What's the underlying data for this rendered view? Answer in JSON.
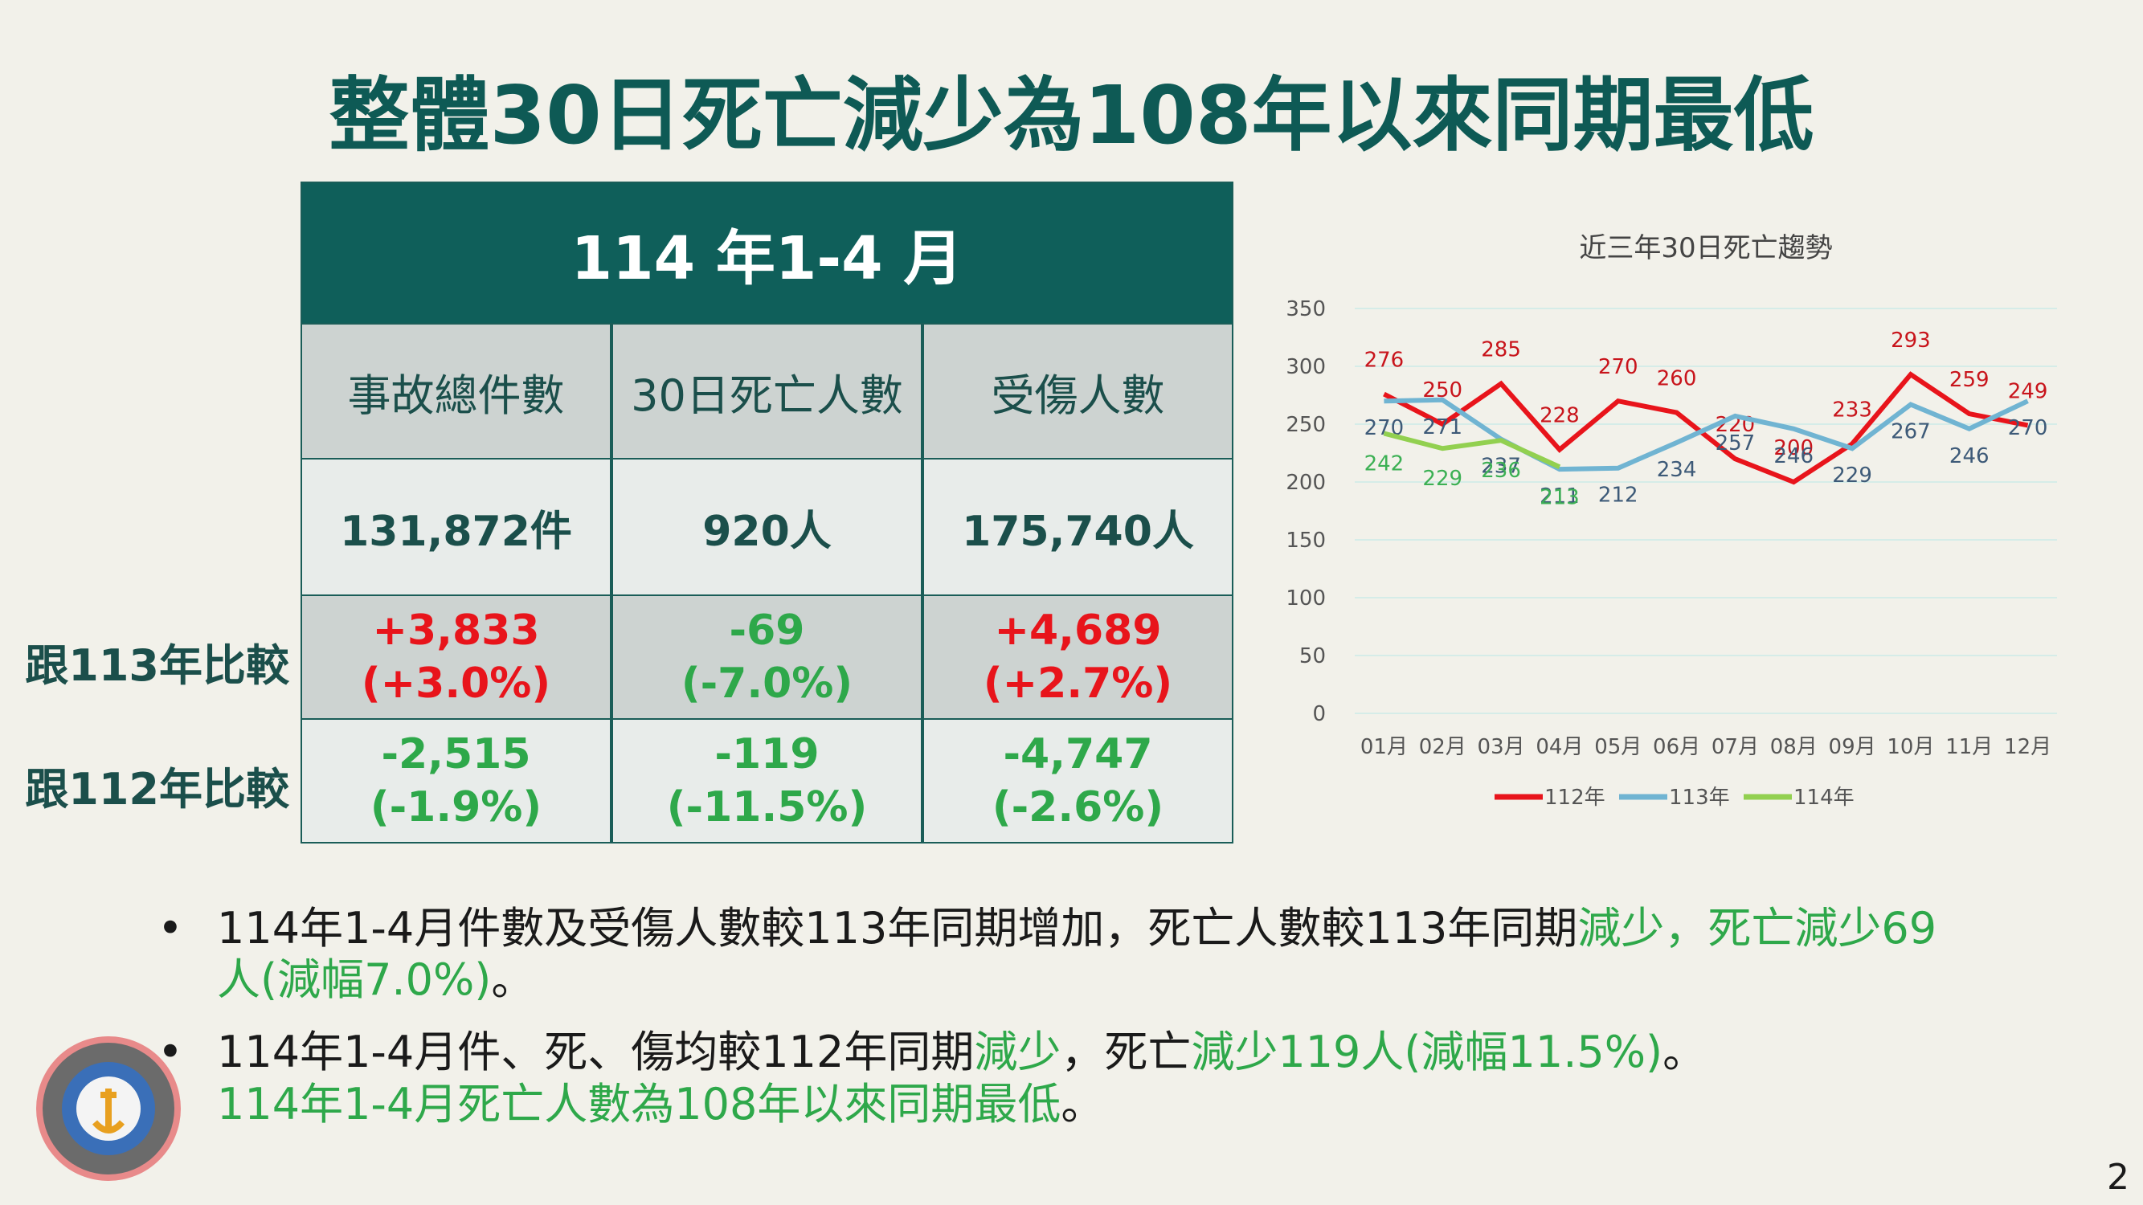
{
  "title": "整體30日死亡減少為108年以來同期最低",
  "table": {
    "period": "114 年1-4 月",
    "columns": [
      "事故總件數",
      "30日死亡人數",
      "受傷人數"
    ],
    "totals": [
      "131,872件",
      "920人",
      "175,740人"
    ],
    "comparisons": [
      {
        "label": "跟113年比較",
        "cells": [
          {
            "change": "+3,833",
            "pct": "(+3.0%)",
            "color": "#e8141b"
          },
          {
            "change": "-69",
            "pct": "(-7.0%)",
            "color": "#2ea84a"
          },
          {
            "change": "+4,689",
            "pct": "(+2.7%)",
            "color": "#e8141b"
          }
        ]
      },
      {
        "label": "跟112年比較",
        "cells": [
          {
            "change": "-2,515",
            "pct": "(-1.9%)",
            "color": "#2ea84a"
          },
          {
            "change": "-119",
            "pct": "(-11.5%)",
            "color": "#2ea84a"
          },
          {
            "change": "-4,747",
            "pct": "(-2.6%)",
            "color": "#2ea84a"
          }
        ]
      }
    ]
  },
  "chart_data": {
    "type": "line",
    "title": "近三年30日死亡趨勢",
    "categories": [
      "01月",
      "02月",
      "03月",
      "04月",
      "05月",
      "06月",
      "07月",
      "08月",
      "09月",
      "10月",
      "11月",
      "12月"
    ],
    "series": [
      {
        "name": "112年",
        "color": "#e8141b",
        "values": [
          276,
          250,
          285,
          228,
          270,
          260,
          220,
          200,
          233,
          293,
          259,
          249
        ]
      },
      {
        "name": "113年",
        "color": "#70b4d2",
        "values": [
          270,
          271,
          237,
          211,
          212,
          234,
          257,
          246,
          229,
          267,
          246,
          270
        ]
      },
      {
        "name": "114年",
        "color": "#92d050",
        "values": [
          242,
          229,
          236,
          213,
          null,
          null,
          null,
          null,
          null,
          null,
          null,
          null
        ]
      }
    ],
    "ylim": [
      0,
      350
    ],
    "yticks": [
      0,
      50,
      100,
      150,
      200,
      250,
      300,
      350
    ],
    "grid": true,
    "legend": "bottom"
  },
  "bullets": [
    {
      "segments": [
        {
          "text": "114年1-4月件數及受傷人數較113年同期增加，死亡人數較113年同期",
          "color": "#1a1a1a"
        },
        {
          "text": "減少，死亡減少69人(減幅7.0%)",
          "color": "#2ea84a"
        },
        {
          "text": "。",
          "color": "#1a1a1a"
        }
      ]
    },
    {
      "segments": [
        {
          "text": "114年1-4月件、死、傷均較112年同期",
          "color": "#1a1a1a"
        },
        {
          "text": "減少",
          "color": "#2ea84a"
        },
        {
          "text": "，死亡",
          "color": "#1a1a1a"
        },
        {
          "text": "減少119人(減幅11.5%)",
          "color": "#2ea84a"
        },
        {
          "text": "。",
          "color": "#1a1a1a"
        }
      ]
    },
    {
      "segments": [
        {
          "text": "114年1-4月死亡人數為108年以來同期最低",
          "color": "#2ea84a"
        },
        {
          "text": "。",
          "color": "#1a1a1a"
        }
      ]
    }
  ],
  "page_number": "2"
}
